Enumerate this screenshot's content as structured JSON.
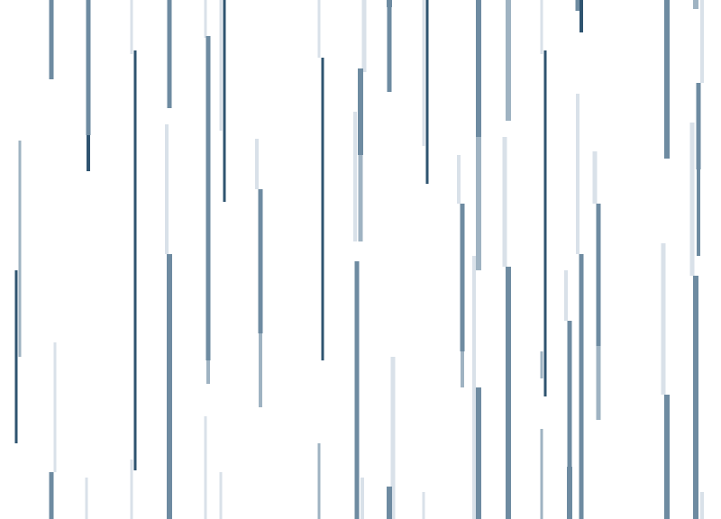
{
  "scene": {
    "description_visible_text": "",
    "background_color": "#ffffff",
    "palette": {
      "dark": "#2f5470",
      "medium": "#6e8ba1",
      "light": "#9fb3c2",
      "pale": "#d9e1e9"
    },
    "icon": "rain-streaks"
  }
}
